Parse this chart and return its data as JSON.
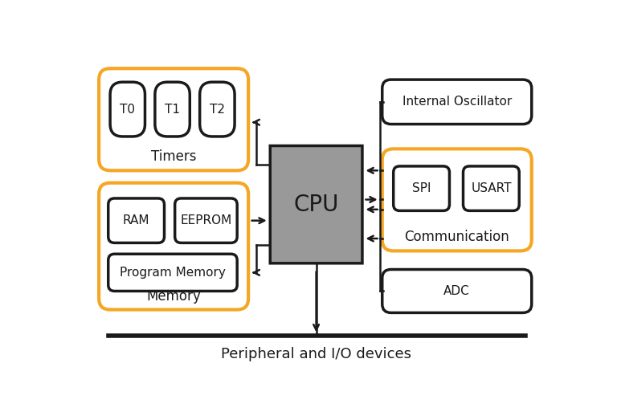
{
  "bg_color": "#ffffff",
  "orange_color": "#F5A623",
  "black_color": "#1a1a1a",
  "gray_cpu_color": "#999999",
  "fig_width": 7.68,
  "fig_height": 5.18,
  "peripheral_label": "Peripheral and I/O devices",
  "cpu_label": "CPU",
  "timers_group_label": "Timers",
  "memory_group_label": "Memory",
  "communication_group_label": "Communication",
  "timer_labels": [
    "T0",
    "T1",
    "T2"
  ],
  "memory_labels": [
    "RAM",
    "EEPROM",
    "Program Memory"
  ],
  "comm_labels": [
    "SPI",
    "USART"
  ],
  "osc_label": "Internal Oscillator",
  "adc_label": "ADC"
}
